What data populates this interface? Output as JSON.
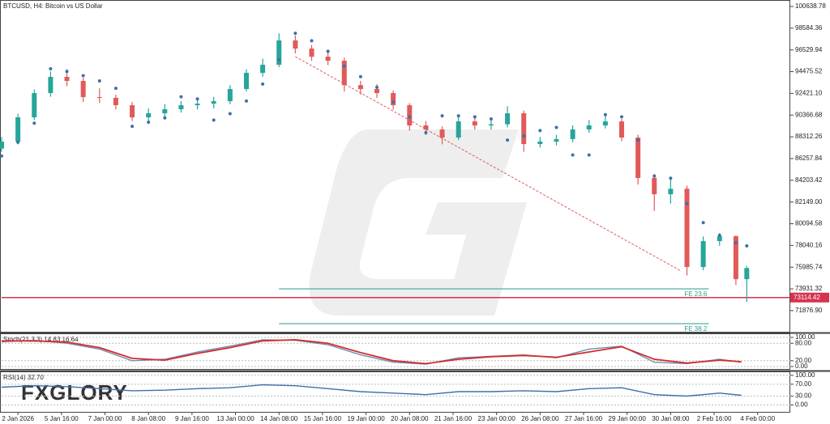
{
  "logo": "FXGLORY",
  "chart_data": [
    {
      "type": "candlestick",
      "title": "BTCUSD, H4:  Bitcoin vs US Dollar",
      "x": [
        0,
        3,
        6,
        9,
        12,
        15,
        18,
        21,
        24,
        27,
        30,
        33,
        36,
        39,
        42,
        45,
        48,
        51,
        54,
        57,
        60,
        63,
        66,
        69,
        72,
        75,
        78,
        81,
        84,
        87,
        90,
        93,
        96,
        99,
        102,
        105,
        108,
        111,
        114,
        117,
        120,
        123,
        126,
        129,
        132,
        135,
        137
      ],
      "open": [
        87200,
        87860,
        90155,
        92450,
        93980,
        93600,
        92070,
        92000,
        91300,
        90155,
        90540,
        90920,
        91300,
        91450,
        91680,
        92830,
        94360,
        95130,
        97430,
        96660,
        95890,
        95510,
        93200,
        92830,
        92450,
        91300,
        89390,
        89010,
        88240,
        89770,
        89390,
        89500,
        90540,
        87630,
        87860,
        88100,
        89010,
        89390,
        89770,
        88240,
        84420,
        82880,
        83400,
        76000,
        78450,
        78910,
        74850
      ],
      "high": [
        88300,
        90500,
        92800,
        94500,
        94700,
        93900,
        92900,
        92300,
        91600,
        91000,
        91400,
        91700,
        91800,
        92100,
        93200,
        94700,
        95700,
        98100,
        97900,
        97000,
        96300,
        95800,
        93600,
        93300,
        92700,
        91500,
        89800,
        89300,
        90300,
        90200,
        89900,
        91200,
        90800,
        88300,
        88500,
        89400,
        89900,
        90400,
        90000,
        88500,
        84800,
        84300,
        83700,
        78900,
        79200,
        79000,
        76100
      ],
      "low": [
        86900,
        87600,
        89900,
        92100,
        93100,
        91600,
        91500,
        90900,
        89800,
        89700,
        90200,
        90600,
        90900,
        91000,
        91400,
        92600,
        94000,
        94900,
        96200,
        95500,
        95100,
        92600,
        92300,
        92000,
        90900,
        88900,
        88500,
        87600,
        88000,
        89000,
        89000,
        89200,
        86900,
        87300,
        87500,
        87800,
        88700,
        89100,
        87900,
        83800,
        81300,
        82000,
        75200,
        75700,
        78000,
        74300,
        72700
      ],
      "close": [
        87860,
        90155,
        92450,
        93980,
        93600,
        92070,
        92000,
        91300,
        90155,
        90540,
        90920,
        91300,
        91450,
        91680,
        92830,
        94360,
        95130,
        97430,
        96660,
        95890,
        95510,
        93200,
        92830,
        92450,
        91300,
        89390,
        89010,
        88240,
        89770,
        89390,
        89500,
        90540,
        87630,
        87860,
        88100,
        89010,
        89390,
        89770,
        88240,
        84420,
        82880,
        83400,
        76000,
        78450,
        78910,
        74850,
        75900
      ],
      "up_color": "#26a69a",
      "down_color": "#e05a5a",
      "sar": {
        "color": "#3f6fa8",
        "values": [
          86500,
          87800,
          89600,
          94750,
          94500,
          94100,
          93600,
          92900,
          89300,
          89700,
          90100,
          92100,
          91900,
          89900,
          90500,
          91700,
          93300,
          95600,
          98100,
          97400,
          96400,
          95000,
          94000,
          93000,
          91600,
          90200,
          88700,
          90300,
          90300,
          90200,
          90000,
          88000,
          88400,
          88900,
          89200,
          86600,
          86600,
          90400,
          90200,
          88000,
          84600,
          84400,
          82000,
          80200,
          79000,
          78300,
          78000
        ]
      },
      "trendline": {
        "color": "#e05a5a",
        "x": [
          54,
          125
        ],
        "values": [
          95890,
          75600
        ]
      },
      "levels": [
        {
          "label": "FE 23.6",
          "value": 73931.32,
          "x": [
            51,
            130
          ]
        },
        {
          "label": "FE 38.2",
          "value": 70640,
          "x": [
            51,
            130
          ]
        }
      ],
      "level_color": "#2a9d8f",
      "price_line": {
        "value": 73114.42,
        "color": "#d6334f"
      },
      "xlim": [
        0,
        145
      ],
      "xticks": [
        {
          "value": 3,
          "label": "2 Jan 2026"
        },
        {
          "value": 11,
          "label": "5 Jan 16:00"
        },
        {
          "value": 19,
          "label": "7 Jan 00:00"
        },
        {
          "value": 27,
          "label": "8 Jan 08:00"
        },
        {
          "value": 35,
          "label": "9 Jan 16:00"
        },
        {
          "value": 43,
          "label": "13 Jan 00:00"
        },
        {
          "value": 51,
          "label": "14 Jan 08:00"
        },
        {
          "value": 59,
          "label": "15 Jan 16:00"
        },
        {
          "value": 67,
          "label": "19 Jan 00:00"
        },
        {
          "value": 75,
          "label": "20 Jan 08:00"
        },
        {
          "value": 83,
          "label": "21 Jan 16:00"
        },
        {
          "value": 91,
          "label": "23 Jan 00:00"
        },
        {
          "value": 99,
          "label": "26 Jan 08:00"
        },
        {
          "value": 107,
          "label": "27 Jan 16:00"
        },
        {
          "value": 115,
          "label": "29 Jan 00:00"
        },
        {
          "value": 123,
          "label": "30 Jan 08:00"
        },
        {
          "value": 131,
          "label": "2 Feb 16:00"
        },
        {
          "value": 139,
          "label": "4 Feb 00:00"
        }
      ],
      "ylim": [
        69879,
        101251
      ],
      "yticks": [
        100638.78,
        98584.36,
        96529.94,
        94475.52,
        {
          "value": 92421.1,
          "label": "92421.10"
        },
        90366.68,
        88312.26,
        86257.84,
        84203.42,
        {
          "value": 82149,
          "label": "82149.00"
        },
        80094.58,
        78040.16,
        75985.74,
        73931.32,
        {
          "value": 71876.9,
          "label": "71876.90"
        }
      ]
    },
    {
      "type": "line",
      "title": "Stoch(21,3,3) 14.83 16.64",
      "x": [
        0,
        6,
        12,
        18,
        24,
        30,
        36,
        42,
        48,
        54,
        60,
        66,
        72,
        78,
        84,
        90,
        96,
        102,
        108,
        114,
        120,
        126,
        132,
        136
      ],
      "series": [
        {
          "color": "#6a8fb5",
          "values": [
            85,
            90,
            80,
            60,
            20,
            25,
            50,
            70,
            92,
            90,
            75,
            40,
            15,
            8,
            30,
            35,
            40,
            30,
            60,
            70,
            15,
            10,
            25,
            14.83
          ]
        },
        {
          "color": "#d62c2c",
          "values": [
            88,
            88,
            84,
            65,
            28,
            22,
            45,
            65,
            88,
            92,
            80,
            48,
            20,
            10,
            25,
            34,
            38,
            32,
            50,
            68,
            25,
            12,
            22,
            16.64
          ]
        }
      ],
      "ylim": [
        -8.3,
        113.9
      ],
      "yticks": [
        {
          "value": 100,
          "label": "100.00"
        },
        {
          "value": 80,
          "label": "80.00"
        },
        {
          "value": 20,
          "label": "20.00"
        },
        {
          "value": 0,
          "label": "0.00"
        }
      ],
      "grid": true
    },
    {
      "type": "line",
      "title": "RSI(14) 32.70",
      "x": [
        0,
        6,
        12,
        18,
        24,
        30,
        36,
        42,
        48,
        54,
        60,
        66,
        72,
        78,
        84,
        90,
        96,
        102,
        108,
        114,
        120,
        126,
        132,
        136
      ],
      "series": [
        {
          "color": "#3f6fa8",
          "values": [
            60,
            65,
            62,
            55,
            48,
            50,
            55,
            58,
            68,
            65,
            55,
            45,
            40,
            35,
            45,
            45,
            48,
            45,
            55,
            58,
            35,
            30,
            40,
            32.7
          ]
        }
      ],
      "ylim": [
        -26,
        110.5
      ],
      "yticks": [
        {
          "value": 100,
          "label": "100.00"
        },
        {
          "value": 70,
          "label": "70.00"
        },
        {
          "value": 30,
          "label": "30.00"
        },
        {
          "value": 0,
          "label": "0.00"
        }
      ],
      "grid": true
    }
  ]
}
